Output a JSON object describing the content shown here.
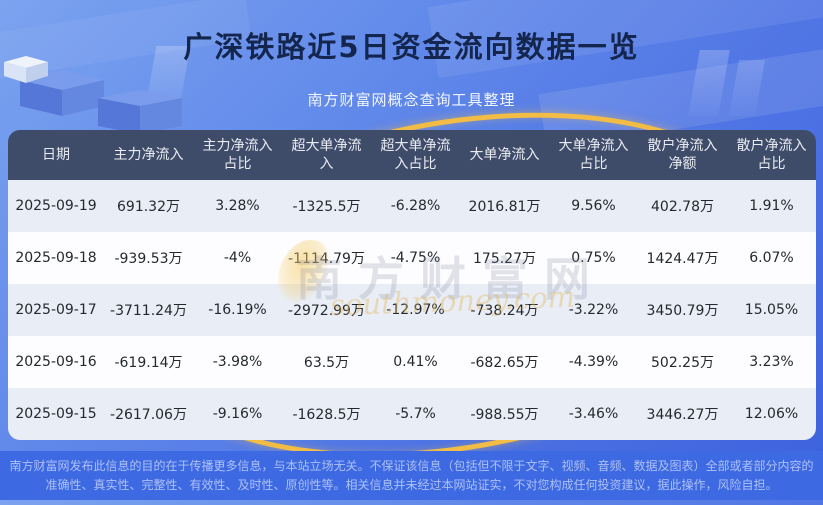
{
  "chart_data": {
    "type": "table",
    "title": "广深铁路近5日资金流向数据一览",
    "source_note": "南方财富网概念查询工具整理",
    "columns": [
      "日期",
      "主力净流入",
      "主力净流入占比",
      "超大单净流入",
      "超大单净流入占比",
      "大单净流入",
      "大单净流入占比",
      "散户净流入净额",
      "散户净流入占比"
    ],
    "rows": [
      [
        "2025-09-19",
        "691.32万",
        "3.28%",
        "-1325.5万",
        "-6.28%",
        "2016.81万",
        "9.56%",
        "402.78万",
        "1.91%"
      ],
      [
        "2025-09-18",
        "-939.53万",
        "-4%",
        "-1114.79万",
        "-4.75%",
        "175.27万",
        "0.75%",
        "1424.47万",
        "6.07%"
      ],
      [
        "2025-09-17",
        "-3711.24万",
        "-16.19%",
        "-2972.99万",
        "-12.97%",
        "-738.24万",
        "-3.22%",
        "3450.79万",
        "15.05%"
      ],
      [
        "2025-09-16",
        "-619.14万",
        "-3.98%",
        "63.5万",
        "0.41%",
        "-682.65万",
        "-4.39%",
        "502.25万",
        "3.23%"
      ],
      [
        "2025-09-15",
        "-2617.06万",
        "-9.16%",
        "-1628.5万",
        "-5.7%",
        "-988.55万",
        "-3.46%",
        "3446.27万",
        "12.06%"
      ]
    ]
  },
  "watermark": {
    "brand": "南方财富网",
    "domain": "southmoney.com"
  },
  "footer": {
    "disclaimer": "南方财富网发布此信息的目的在于传播更多信息，与本站立场无关。不保证该信息（包括但不限于文字、视频、音频、数据及图表）全部或者部分内容的准确性、真实性、完整性、有效性、及时性、原创性等。相关信息并未经过本网站证实，不对您构成任何投资建议，据此操作，风险自担。"
  },
  "colors": {
    "background_top": "#7ba3ef",
    "background_bottom": "#3c61dd",
    "table_header_bg": "#3f4c69",
    "row_alt": "#e9edf6",
    "row_plain": "#fdfdff",
    "accent_gold": "#f3bd45",
    "footer_bg": "#3d69e3",
    "title_color": "#14264e"
  }
}
